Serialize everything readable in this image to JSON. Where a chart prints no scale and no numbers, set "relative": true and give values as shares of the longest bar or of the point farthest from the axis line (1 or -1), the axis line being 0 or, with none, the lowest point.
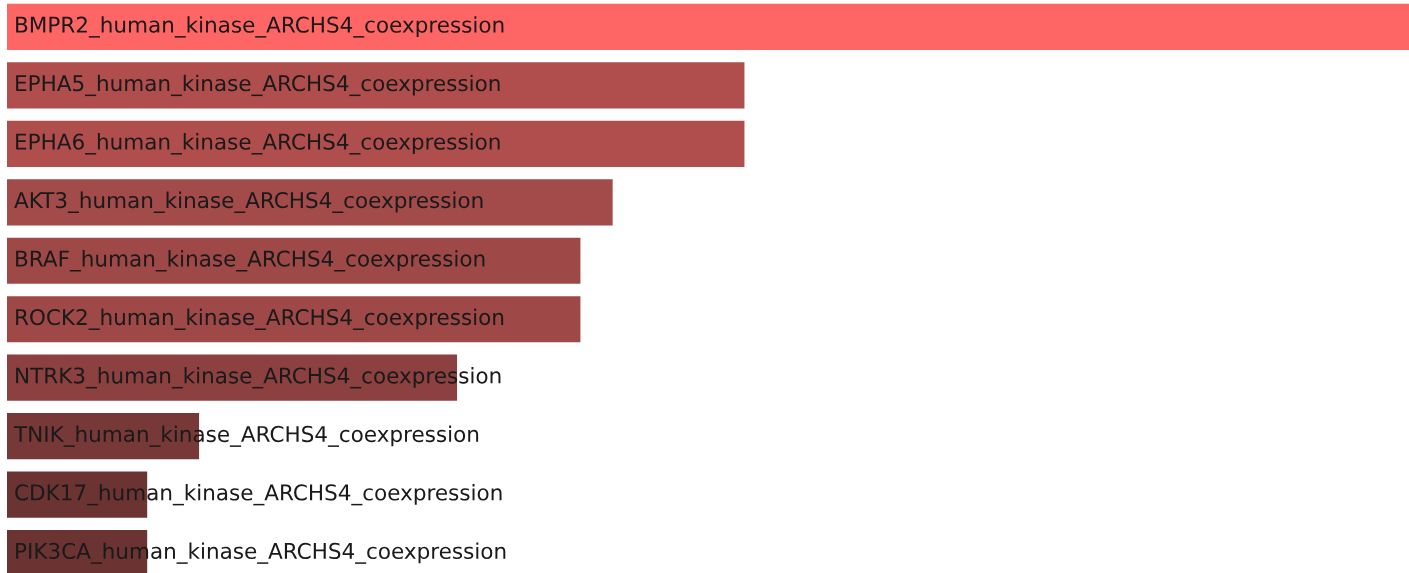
{
  "chart_data": {
    "type": "bar",
    "orientation": "horizontal",
    "relative": true,
    "categories": [
      "BMPR2_human_kinase_ARCHS4_coexpression",
      "EPHA5_human_kinase_ARCHS4_coexpression",
      "EPHA6_human_kinase_ARCHS4_coexpression",
      "AKT3_human_kinase_ARCHS4_coexpression",
      "BRAF_human_kinase_ARCHS4_coexpression",
      "ROCK2_human_kinase_ARCHS4_coexpression",
      "NTRK3_human_kinase_ARCHS4_coexpression",
      "TNIK_human_kinase_ARCHS4_coexpression",
      "CDK17_human_kinase_ARCHS4_coexpression",
      "PIK3CA_human_kinase_ARCHS4_coexpression"
    ],
    "values": [
      1,
      0.526,
      0.526,
      0.432,
      0.409,
      0.409,
      0.321,
      0.137,
      0.1,
      0.1
    ],
    "colors": [
      "#fe6666",
      "#b04e4e",
      "#b04e4e",
      "#a34a4a",
      "#9f4848",
      "#9f4848",
      "#8c4040",
      "#773838",
      "#6c3333",
      "#6c3333"
    ]
  }
}
